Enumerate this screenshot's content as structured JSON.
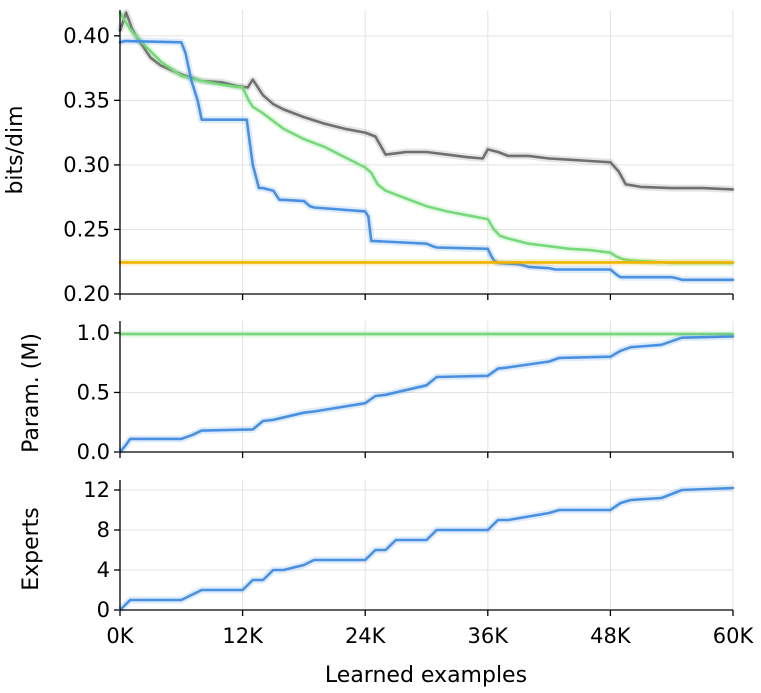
{
  "chart_data": {
    "type": "line",
    "xlabel": "Learned examples",
    "x_ticks": [
      "0K",
      "12K",
      "24K",
      "36K",
      "48K",
      "60K"
    ],
    "x_tick_values": [
      0,
      12000,
      24000,
      36000,
      48000,
      60000
    ],
    "xlim": [
      0,
      60000
    ],
    "grid": true,
    "colors": {
      "blue": "#4a90e2",
      "green": "#77d97a",
      "gray": "#707070",
      "orange": "#f0b400"
    },
    "panels": [
      {
        "ylabel": "bits/dim",
        "ylim": [
          0.2,
          0.42
        ],
        "y_ticks": [
          "0.20",
          "0.25",
          "0.30",
          "0.35",
          "0.40"
        ],
        "y_tick_values": [
          0.2,
          0.25,
          0.3,
          0.35,
          0.4
        ],
        "series": [
          {
            "color": "#707070",
            "x": [
              0,
              600,
              1200,
              1800,
              3000,
              4000,
              6000,
              8000,
              10000,
              11500,
              12500,
              13000,
              14000,
              15000,
              16000,
              18000,
              20000,
              22000,
              24000,
              25000,
              25500,
              26000,
              27000,
              28000,
              30000,
              32000,
              34000,
              35500,
              36000,
              37000,
              38000,
              40000,
              42000,
              44000,
              46000,
              48000,
              48800,
              49500,
              51000,
              54000,
              57000,
              60000
            ],
            "y": [
              0.404,
              0.418,
              0.405,
              0.397,
              0.383,
              0.377,
              0.37,
              0.365,
              0.364,
              0.361,
              0.36,
              0.366,
              0.354,
              0.347,
              0.343,
              0.337,
              0.332,
              0.328,
              0.325,
              0.322,
              0.315,
              0.308,
              0.309,
              0.31,
              0.31,
              0.308,
              0.306,
              0.305,
              0.312,
              0.31,
              0.307,
              0.307,
              0.305,
              0.304,
              0.303,
              0.302,
              0.295,
              0.285,
              0.283,
              0.282,
              0.282,
              0.281
            ]
          },
          {
            "color": "#77d97a",
            "x": [
              0,
              1000,
              2000,
              3000,
              4000,
              6000,
              8000,
              10000,
              12000,
              12600,
              13000,
              14000,
              16000,
              18000,
              20000,
              22000,
              24000,
              24600,
              25200,
              26000,
              28000,
              30000,
              32000,
              34000,
              36000,
              36600,
              37200,
              38000,
              40000,
              42000,
              44000,
              46000,
              48000,
              48600,
              49200,
              50000,
              52000,
              54000,
              57000,
              60000
            ],
            "y": [
              0.418,
              0.405,
              0.396,
              0.388,
              0.38,
              0.369,
              0.365,
              0.362,
              0.36,
              0.35,
              0.345,
              0.34,
              0.328,
              0.32,
              0.314,
              0.306,
              0.298,
              0.294,
              0.285,
              0.28,
              0.274,
              0.268,
              0.264,
              0.261,
              0.258,
              0.25,
              0.245,
              0.243,
              0.239,
              0.237,
              0.235,
              0.234,
              0.232,
              0.229,
              0.227,
              0.226,
              0.225,
              0.224,
              0.224,
              0.224
            ]
          },
          {
            "color": "#4a90e2",
            "x": [
              0,
              500,
              6000,
              6400,
              7000,
              7600,
              8000,
              12000,
              12400,
              13000,
              13600,
              14000,
              15000,
              15600,
              16000,
              18000,
              18600,
              19000,
              24000,
              24300,
              24600,
              25000,
              30000,
              30600,
              31000,
              36000,
              36300,
              36600,
              37000,
              39000,
              39600,
              40000,
              42000,
              42600,
              43000,
              48000,
              48600,
              49000,
              54000,
              54600,
              55000,
              60000
            ],
            "y": [
              0.395,
              0.396,
              0.395,
              0.387,
              0.365,
              0.35,
              0.335,
              0.335,
              0.335,
              0.3,
              0.282,
              0.282,
              0.28,
              0.273,
              0.273,
              0.272,
              0.268,
              0.267,
              0.264,
              0.26,
              0.241,
              0.241,
              0.239,
              0.237,
              0.236,
              0.235,
              0.23,
              0.226,
              0.224,
              0.223,
              0.222,
              0.221,
              0.22,
              0.219,
              0.219,
              0.219,
              0.215,
              0.213,
              0.213,
              0.212,
              0.211,
              0.211
            ]
          },
          {
            "color": "#f0b400",
            "x": [
              0,
              60000
            ],
            "y": [
              0.2245,
              0.2245
            ]
          }
        ]
      },
      {
        "ylabel": "Param. (M)",
        "ylim": [
          0,
          1.1
        ],
        "y_ticks": [
          "0.0",
          "0.5",
          "1.0"
        ],
        "y_tick_values": [
          0,
          0.5,
          1.0
        ],
        "series": [
          {
            "color": "#77d97a",
            "x": [
              0,
              60000
            ],
            "y": [
              0.99,
              0.99
            ]
          },
          {
            "color": "#4a90e2",
            "x": [
              0,
              500,
              1000,
              6000,
              7000,
              8000,
              13000,
              14000,
              15000,
              18000,
              19000,
              24000,
              25000,
              26000,
              30000,
              31000,
              36000,
              37000,
              38000,
              42000,
              43000,
              48000,
              49000,
              50000,
              53000,
              54000,
              55000,
              60000
            ],
            "y": [
              0,
              0.05,
              0.11,
              0.11,
              0.14,
              0.18,
              0.19,
              0.26,
              0.27,
              0.33,
              0.34,
              0.41,
              0.47,
              0.48,
              0.56,
              0.63,
              0.64,
              0.7,
              0.71,
              0.76,
              0.79,
              0.8,
              0.85,
              0.88,
              0.9,
              0.93,
              0.96,
              0.97
            ]
          }
        ]
      },
      {
        "ylabel": "Experts",
        "ylim": [
          0,
          13
        ],
        "y_ticks": [
          "0",
          "4",
          "8",
          "12"
        ],
        "y_tick_values": [
          0,
          4,
          8,
          12
        ],
        "series": [
          {
            "color": "#4a90e2",
            "x": [
              0,
              500,
              1000,
              6000,
              7000,
              8000,
              12000,
              13000,
              14000,
              15000,
              16000,
              18000,
              19000,
              24000,
              25000,
              26000,
              27000,
              30000,
              31000,
              36000,
              37000,
              38000,
              42000,
              43000,
              48000,
              49000,
              50000,
              53000,
              54000,
              55000,
              60000
            ],
            "y": [
              0,
              0.5,
              1,
              1,
              1.5,
              2,
              2,
              3,
              3,
              4,
              4,
              4.5,
              5,
              5,
              6,
              6,
              7,
              7,
              8,
              8,
              9,
              9,
              9.7,
              10,
              10,
              10.7,
              11,
              11.2,
              11.6,
              12,
              12.2
            ]
          }
        ]
      }
    ]
  }
}
